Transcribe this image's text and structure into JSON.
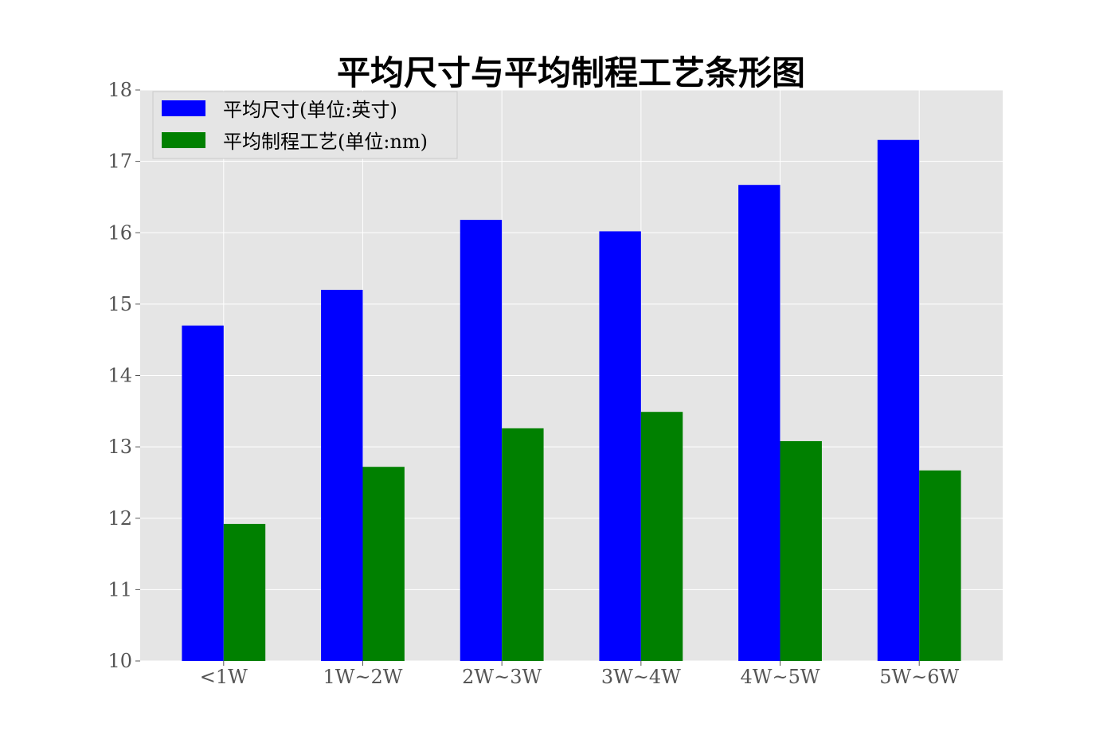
{
  "chart_data": {
    "type": "bar",
    "title": "平均尺寸与平均制程工艺条形图",
    "xlabel": "",
    "ylabel": "",
    "categories": [
      "<1W",
      "1W~2W",
      "2W~3W",
      "3W~4W",
      "4W~5W",
      "5W~6W"
    ],
    "series": [
      {
        "name": "平均尺寸(单位:英寸)",
        "color": "#0000ff",
        "values": [
          14.7,
          15.2,
          16.18,
          16.02,
          16.67,
          17.3
        ]
      },
      {
        "name": "平均制程工艺(单位:nm)",
        "color": "#008000",
        "values": [
          11.92,
          12.72,
          13.26,
          13.49,
          13.08,
          12.67
        ]
      }
    ],
    "ylim": [
      10,
      18
    ],
    "yticks": [
      10,
      11,
      12,
      13,
      14,
      15,
      16,
      17,
      18
    ],
    "grid": true,
    "legend_position": "top-left",
    "background_color": "#e5e5e5"
  }
}
